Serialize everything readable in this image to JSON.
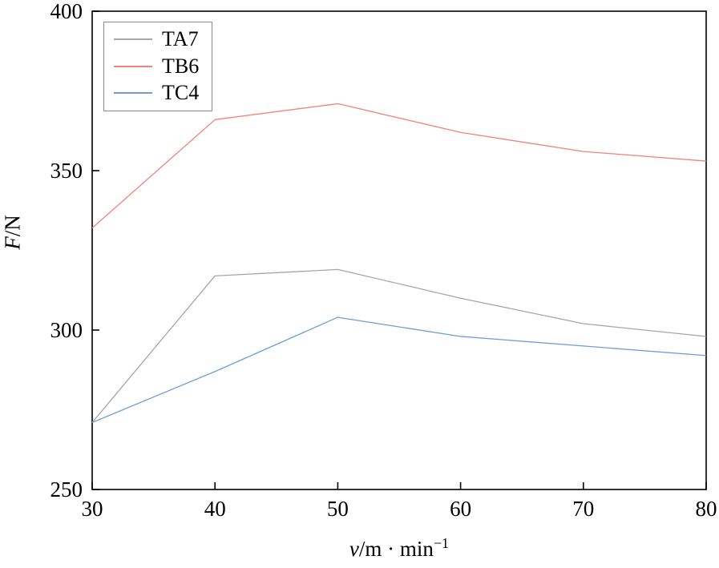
{
  "figure": {
    "background": "#ffffff",
    "frame_color": "#000000"
  },
  "axis_titles": {
    "x": {
      "italic": "v",
      "main": "/m · min",
      "sup": "−1"
    },
    "y": {
      "italic": "F",
      "main": "/N"
    }
  },
  "chart_data": {
    "type": "line",
    "x": [
      30,
      40,
      50,
      60,
      70,
      80
    ],
    "series": [
      {
        "name": "TA7",
        "color": "#a6a6a6",
        "values": [
          271,
          317,
          319,
          310,
          302,
          298
        ]
      },
      {
        "name": "TB6",
        "color": "#f0837b",
        "values": [
          332,
          366,
          371,
          362,
          356,
          353
        ]
      },
      {
        "name": "TC4",
        "color": "#6f9ed6",
        "values": [
          271,
          287,
          304,
          298,
          295,
          292
        ]
      }
    ],
    "title": "",
    "xlabel": "v/m · min⁻¹",
    "ylabel": "F/N",
    "xlim": [
      30,
      80
    ],
    "ylim": [
      250,
      400
    ],
    "xticks": [
      30,
      40,
      50,
      60,
      70,
      80
    ],
    "yticks": [
      250,
      300,
      350,
      400
    ],
    "grid": false,
    "legend_position": "upper-left"
  }
}
